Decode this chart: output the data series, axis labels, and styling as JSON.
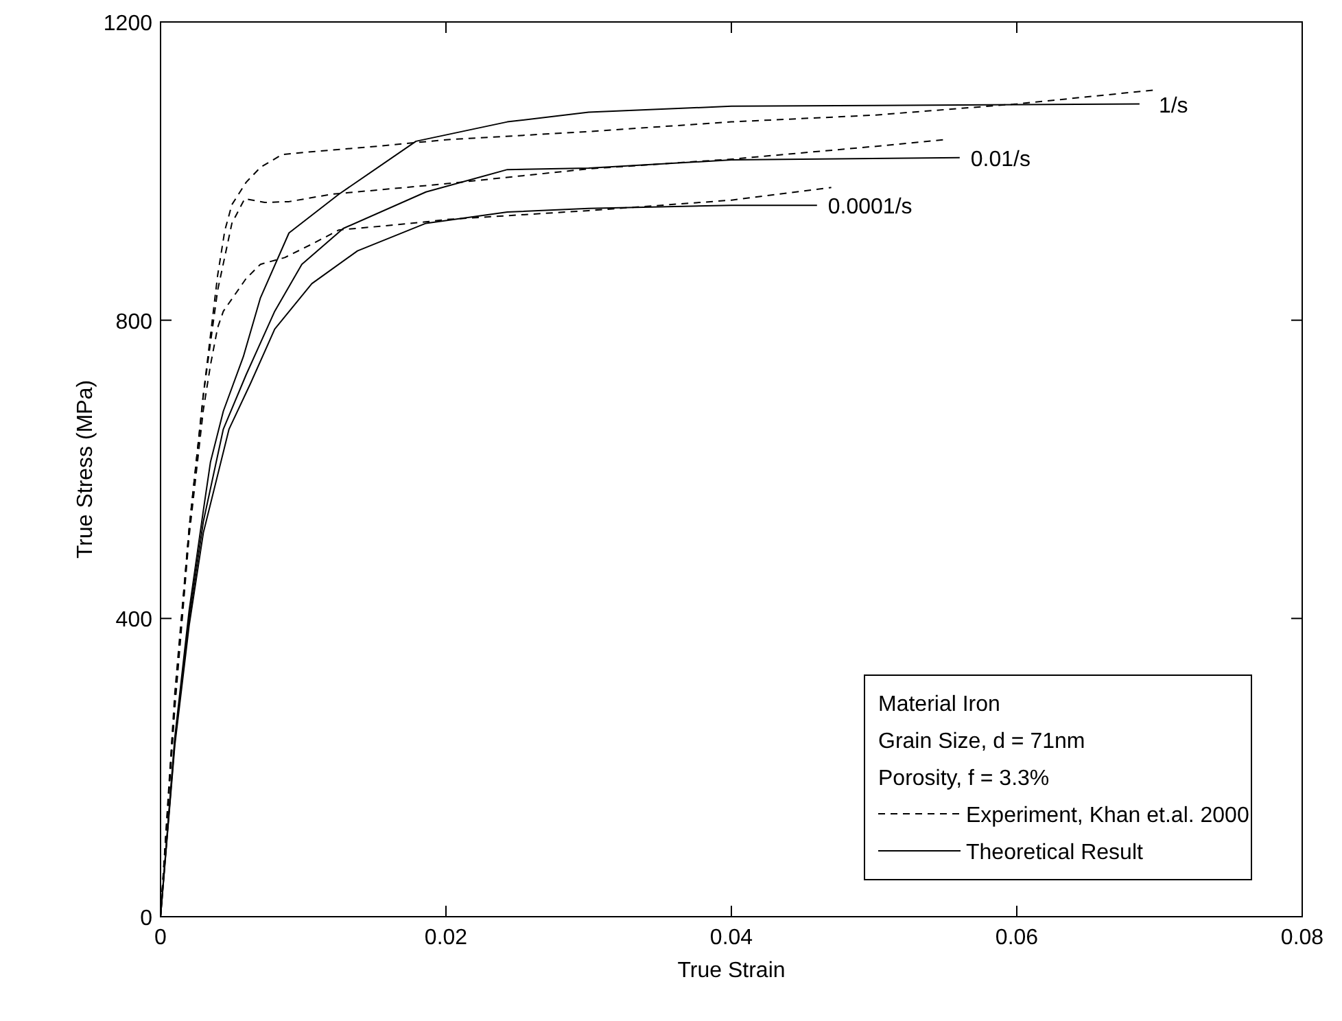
{
  "chart_data": {
    "type": "line",
    "xlabel": "True Strain",
    "ylabel": "True Stress (MPa)",
    "xlim": [
      0,
      0.08
    ],
    "ylim": [
      0,
      1200
    ],
    "xticks": [
      0,
      0.02,
      0.04,
      0.06,
      0.08
    ],
    "yticks": [
      0,
      400,
      800,
      1200
    ],
    "grid": false,
    "legend": "bottom right",
    "marker": "none",
    "series": [
      {
        "name": "Experiment, Khan et.al. 2000",
        "color": "#000000",
        "line_style": "dashed",
        "x": [
          0,
          0.001,
          0.002,
          0.003,
          0.0035,
          0.004,
          0.0045,
          0.005,
          0.006,
          0.007,
          0.0085,
          0.01,
          0.015,
          0.02,
          0.03,
          0.04,
          0.05,
          0.06,
          0.0698
        ],
        "values": [
          0,
          300,
          520,
          700,
          780,
          860,
          920,
          955,
          985,
          1005,
          1022,
          1025,
          1033,
          1042,
          1053,
          1066,
          1075,
          1090,
          1109
        ]
      },
      {
        "color": "#000000",
        "line_style": "dashed",
        "x": [
          0,
          0.001,
          0.002,
          0.003,
          0.004,
          0.005,
          0.0059,
          0.0073,
          0.009,
          0.012,
          0.02,
          0.03,
          0.04,
          0.05,
          0.0549
        ],
        "values": [
          0,
          290,
          520,
          700,
          840,
          930,
          963,
          958,
          959,
          969,
          983,
          1003,
          1016,
          1033,
          1042
        ]
      },
      {
        "color": "#000000",
        "line_style": "dashed",
        "x": [
          0,
          0.001,
          0.002,
          0.003,
          0.0035,
          0.004,
          0.0044,
          0.006,
          0.007,
          0.0087,
          0.0106,
          0.0125,
          0.0154,
          0.0186,
          0.02,
          0.03,
          0.04,
          0.047
        ],
        "values": [
          0,
          280,
          510,
          680,
          740,
          790,
          812,
          856,
          875,
          884,
          902,
          921,
          926,
          932,
          935,
          947,
          961,
          978
        ]
      },
      {
        "name": "Theoretical Result",
        "color": "#000000",
        "line_style": "solid",
        "x": [
          0,
          0.001,
          0.002,
          0.003,
          0.0035,
          0.0044,
          0.0058,
          0.007,
          0.009,
          0.0125,
          0.0179,
          0.0243,
          0.03,
          0.04,
          0.05,
          0.0686
        ],
        "values": [
          0,
          240,
          410,
          545,
          610,
          678,
          751,
          830,
          917,
          969,
          1040,
          1066,
          1079,
          1087,
          1088,
          1090
        ]
      },
      {
        "color": "#000000",
        "line_style": "solid",
        "x": [
          0,
          0.001,
          0.002,
          0.003,
          0.0044,
          0.006,
          0.008,
          0.0099,
          0.0128,
          0.0186,
          0.0243,
          0.03,
          0.04,
          0.056
        ],
        "values": [
          0,
          235,
          400,
          530,
          654,
          727,
          812,
          875,
          923,
          972,
          1002,
          1004,
          1015,
          1018
        ]
      },
      {
        "color": "#000000",
        "line_style": "solid",
        "x": [
          0,
          0.001,
          0.002,
          0.003,
          0.0048,
          0.0063,
          0.008,
          0.0106,
          0.0138,
          0.0186,
          0.0243,
          0.03,
          0.04,
          0.046
        ],
        "values": [
          0,
          230,
          390,
          515,
          654,
          715,
          788,
          849,
          893,
          930,
          945,
          950,
          954,
          954
        ]
      }
    ],
    "annotations": [
      "Material Iron",
      "Grain Size, d = 71nm",
      "Porosity, f = 3.3%",
      {
        "text": "1/s",
        "x": 0.0686,
        "y": 1090
      },
      {
        "text": "0.01/s",
        "x": 0.056,
        "y": 1018
      },
      {
        "text": "0.0001/s",
        "x": 0.046,
        "y": 954
      }
    ]
  }
}
